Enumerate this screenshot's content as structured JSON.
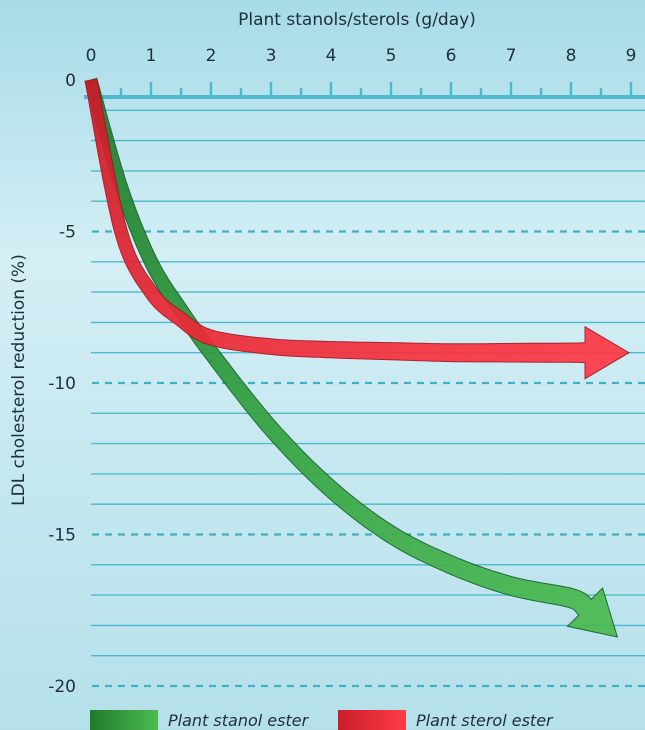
{
  "chart_data": {
    "type": "line",
    "title": "",
    "xlabel": "Plant stanols/sterols (g/day)",
    "ylabel": "LDL cholesterol reduction (%)",
    "xlim": [
      0,
      9
    ],
    "ylim": [
      -20,
      0
    ],
    "x_ticks": [
      "0",
      "1",
      "2",
      "3",
      "4",
      "5",
      "6",
      "7",
      "8",
      "9"
    ],
    "y_ticks": [
      "0",
      "-5",
      "-10",
      "-15",
      "-20"
    ],
    "x_axis_position": "top",
    "grid": true,
    "legend_position": "bottom",
    "series": [
      {
        "name": "Plant stanol ester",
        "color": "#2f9a3c",
        "x": [
          0,
          0.5,
          1,
          1.5,
          2,
          3,
          4,
          5,
          6,
          7,
          8,
          9
        ],
        "y": [
          0,
          -3.5,
          -6,
          -7.6,
          -9,
          -11.5,
          -13.5,
          -15,
          -16,
          -16.7,
          -17.1,
          -17.4
        ]
      },
      {
        "name": "Plant sterol ester",
        "color": "#e52632",
        "x": [
          0,
          0.5,
          1,
          1.5,
          2,
          3,
          4,
          5,
          6,
          7,
          8,
          9
        ],
        "y": [
          0,
          -5,
          -7,
          -7.9,
          -8.5,
          -8.8,
          -8.9,
          -8.95,
          -9,
          -9,
          -9,
          -9
        ]
      }
    ]
  },
  "colors": {
    "background": "#c4e5ef",
    "grid_solid": "#4db9cc",
    "grid_dashed": "#3fb1c4",
    "axis": "#4db9cc"
  }
}
